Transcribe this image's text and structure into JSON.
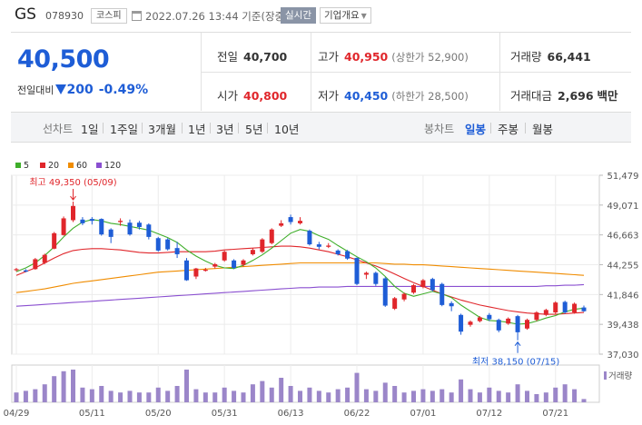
{
  "header": {
    "name": "GS",
    "code": "078930",
    "market": "코스피",
    "datetime": "2022.07.26 13:44 기준(장중)",
    "realtime_label": "실시간",
    "corp_label": "기업개요"
  },
  "price": {
    "current": "40,500",
    "change_label": "전일대비",
    "change_amount": "200",
    "change_percent": "-0.49%"
  },
  "stats": {
    "prev_label": "전일",
    "prev_value": "40,700",
    "high_label": "고가",
    "high_value": "40,950",
    "upper_limit": "(상한가 52,900)",
    "volume_label": "거래량",
    "volume_value": "66,441",
    "open_label": "시가",
    "open_value": "40,800",
    "low_label": "저가",
    "low_value": "40,450",
    "lower_limit": "(하한가 28,500)",
    "amount_label": "거래대금",
    "amount_value": "2,696",
    "amount_unit": "백만"
  },
  "tabs": {
    "line_label": "선차트",
    "line_items": [
      "1일",
      "1주일",
      "3개월",
      "1년",
      "3년",
      "5년",
      "10년"
    ],
    "candle_label": "봉차트",
    "candle_items": [
      "일봉",
      "주봉",
      "월봉"
    ],
    "candle_selected": "일봉"
  },
  "colors": {
    "up": "#e0262b",
    "down": "#1e5dd6",
    "ma5": "#3fae2a",
    "ma20": "#e0262b",
    "ma60": "#f08c00",
    "ma120": "#8a4fd0",
    "volume": "#9b86c9"
  },
  "chart_data": {
    "type": "candlestick",
    "legend": [
      {
        "name": "5",
        "color": "#3fae2a"
      },
      {
        "name": "20",
        "color": "#e0262b"
      },
      {
        "name": "60",
        "color": "#f08c00"
      },
      {
        "name": "120",
        "color": "#8a4fd0"
      }
    ],
    "y_ticks": [
      51479,
      49071,
      46663,
      44255,
      41846,
      39438,
      37030
    ],
    "y_tick_labels": [
      "51,479",
      "49,071",
      "46,663",
      "44,255",
      "41,846",
      "39,438",
      "37,030"
    ],
    "ylim": [
      37030,
      51479
    ],
    "x_tick_labels": [
      "04/29",
      "05/11",
      "05/20",
      "05/31",
      "06/13",
      "06/22",
      "07/01",
      "07/12",
      "07/21"
    ],
    "x_tick_index": [
      0,
      8,
      15,
      22,
      29,
      36,
      43,
      50,
      57
    ],
    "high_annotation": {
      "label": "최고",
      "value": "49,350",
      "date": "(05/09)",
      "index": 6
    },
    "low_annotation": {
      "label": "최저",
      "value": "38,150",
      "date": "(07/15)",
      "index": 53
    },
    "volume_label": "거래량",
    "candles": [
      [
        43900,
        43900,
        44000,
        43700
      ],
      [
        43800,
        43700,
        43900,
        43650
      ],
      [
        43900,
        44700,
        44800,
        43850
      ],
      [
        44400,
        45050,
        45150,
        44300
      ],
      [
        45550,
        46800,
        46900,
        45500
      ],
      [
        46650,
        48000,
        48150,
        46600
      ],
      [
        47850,
        49000,
        49350,
        47700
      ],
      [
        47900,
        47600,
        48100,
        47450
      ],
      [
        47950,
        47800,
        48100,
        47500
      ],
      [
        47950,
        46700,
        48000,
        46600
      ],
      [
        47100,
        46500,
        47200,
        46000
      ],
      [
        47700,
        47800,
        48000,
        47400
      ],
      [
        47650,
        46700,
        47900,
        46600
      ],
      [
        47650,
        47300,
        47800,
        47100
      ],
      [
        47500,
        46500,
        47600,
        46300
      ],
      [
        46400,
        45400,
        46500,
        45300
      ],
      [
        46300,
        45500,
        46400,
        45400
      ],
      [
        45600,
        45100,
        46100,
        44800
      ],
      [
        44600,
        43000,
        44800,
        42950
      ],
      [
        43300,
        43950,
        44000,
        43100
      ],
      [
        43850,
        43850,
        44000,
        43700
      ],
      [
        44100,
        44300,
        44400,
        43950
      ],
      [
        44600,
        45300,
        45400,
        44500
      ],
      [
        44600,
        44000,
        44700,
        43900
      ],
      [
        44250,
        44600,
        44700,
        44100
      ],
      [
        45100,
        45450,
        45600,
        45000
      ],
      [
        45300,
        46300,
        46400,
        45200
      ],
      [
        46000,
        47100,
        47200,
        45900
      ],
      [
        47400,
        47600,
        47850,
        47300
      ],
      [
        48100,
        47700,
        48300,
        47500
      ],
      [
        47600,
        47800,
        48100,
        47500
      ],
      [
        47000,
        45900,
        47100,
        45800
      ],
      [
        45900,
        45700,
        46100,
        45500
      ],
      [
        45700,
        45800,
        46000,
        45600
      ],
      [
        45400,
        45100,
        45500,
        45000
      ],
      [
        45350,
        44750,
        45450,
        44650
      ],
      [
        44800,
        42700,
        44850,
        42600
      ],
      [
        43450,
        43600,
        43700,
        43100
      ],
      [
        43600,
        42700,
        43700,
        42550
      ],
      [
        43150,
        40950,
        43250,
        40850
      ],
      [
        40700,
        41550,
        41650,
        40600
      ],
      [
        41450,
        41900,
        42000,
        41300
      ],
      [
        42000,
        42600,
        42700,
        41900
      ],
      [
        42450,
        43000,
        43100,
        42350
      ],
      [
        43100,
        42200,
        43200,
        42100
      ],
      [
        42700,
        41000,
        42800,
        40900
      ],
      [
        41150,
        40900,
        41300,
        40500
      ],
      [
        40200,
        38850,
        40300,
        38600
      ],
      [
        39400,
        39650,
        39750,
        39250
      ],
      [
        39700,
        40000,
        40100,
        39600
      ],
      [
        40200,
        39850,
        40350,
        39700
      ],
      [
        39800,
        38950,
        39900,
        38800
      ],
      [
        39500,
        39900,
        40000,
        39400
      ],
      [
        40100,
        38800,
        40200,
        38150
      ],
      [
        39100,
        39800,
        39900,
        39000
      ],
      [
        39800,
        40400,
        40500,
        39700
      ],
      [
        40200,
        40600,
        40700,
        40100
      ],
      [
        40400,
        41200,
        41300,
        40300
      ],
      [
        41250,
        40400,
        41350,
        40300
      ],
      [
        40400,
        41100,
        41200,
        40300
      ],
      [
        40800,
        40500,
        40950,
        40450
      ]
    ],
    "ma5": [
      43700,
      44000,
      44400,
      45000,
      45700,
      46500,
      47200,
      47700,
      47900,
      47800,
      47600,
      47500,
      47350,
      47200,
      47050,
      46750,
      46450,
      46050,
      45450,
      44950,
      44550,
      44200,
      44000,
      43950,
      44200,
      44600,
      45050,
      45600,
      46200,
      46800,
      47100,
      46950,
      46600,
      46300,
      45800,
      45350,
      44900,
      44500,
      44000,
      43300,
      42500,
      41950,
      41700,
      41900,
      42100,
      41900,
      41600,
      41000,
      40500,
      40000,
      39750,
      39700,
      39600,
      39450,
      39500,
      39700,
      39950,
      40150,
      40450,
      40650,
      40750
    ],
    "ma20": [
      43400,
      43700,
      44000,
      44400,
      44800,
      45150,
      45400,
      45500,
      45550,
      45550,
      45500,
      45450,
      45350,
      45250,
      45200,
      45200,
      45250,
      45300,
      45300,
      45300,
      45300,
      45350,
      45450,
      45500,
      45550,
      45600,
      45650,
      45700,
      45750,
      45750,
      45700,
      45600,
      45450,
      45300,
      45100,
      44900,
      44650,
      44400,
      44150,
      43850,
      43500,
      43150,
      42800,
      42500,
      42200,
      41900,
      41650,
      41400,
      41200,
      41000,
      40850,
      40700,
      40550,
      40450,
      40350,
      40300,
      40250,
      40250,
      40300,
      40350,
      40400
    ],
    "ma60": [
      42000,
      42100,
      42200,
      42300,
      42450,
      42600,
      42750,
      42850,
      42950,
      43050,
      43150,
      43250,
      43350,
      43450,
      43550,
      43650,
      43700,
      43750,
      43800,
      43850,
      43900,
      43950,
      44000,
      44050,
      44100,
      44150,
      44200,
      44250,
      44300,
      44350,
      44400,
      44400,
      44400,
      44400,
      44400,
      44400,
      44400,
      44400,
      44400,
      44350,
      44300,
      44300,
      44250,
      44250,
      44200,
      44150,
      44100,
      44050,
      44000,
      43950,
      43900,
      43850,
      43800,
      43750,
      43700,
      43650,
      43600,
      43550,
      43500,
      43450,
      43400
    ],
    "ma120": [
      40900,
      40950,
      41000,
      41050,
      41100,
      41150,
      41200,
      41250,
      41300,
      41350,
      41400,
      41450,
      41500,
      41550,
      41600,
      41650,
      41700,
      41750,
      41800,
      41850,
      41900,
      41950,
      42000,
      42050,
      42100,
      42150,
      42200,
      42250,
      42300,
      42350,
      42400,
      42400,
      42450,
      42450,
      42450,
      42500,
      42500,
      42500,
      42500,
      42500,
      42500,
      42500,
      42500,
      42500,
      42500,
      42500,
      42500,
      42500,
      42500,
      42500,
      42500,
      42500,
      42500,
      42500,
      42500,
      42500,
      42550,
      42550,
      42600,
      42600,
      42650
    ],
    "volumes": [
      30,
      35,
      40,
      55,
      80,
      95,
      100,
      45,
      40,
      50,
      35,
      30,
      35,
      30,
      30,
      45,
      35,
      50,
      100,
      40,
      30,
      30,
      45,
      35,
      30,
      55,
      65,
      45,
      75,
      50,
      35,
      45,
      35,
      30,
      40,
      45,
      90,
      40,
      35,
      60,
      50,
      30,
      35,
      40,
      35,
      40,
      30,
      70,
      40,
      30,
      45,
      35,
      30,
      55,
      35,
      25,
      30,
      45,
      55,
      40,
      10
    ]
  }
}
